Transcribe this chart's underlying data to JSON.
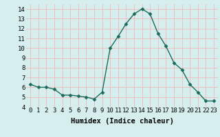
{
  "x": [
    0,
    1,
    2,
    3,
    4,
    5,
    6,
    7,
    8,
    9,
    10,
    11,
    12,
    13,
    14,
    15,
    16,
    17,
    18,
    19,
    20,
    21,
    22,
    23
  ],
  "y": [
    6.3,
    6.0,
    6.0,
    5.8,
    5.2,
    5.2,
    5.1,
    5.0,
    4.8,
    5.5,
    10.0,
    11.2,
    12.5,
    13.5,
    14.0,
    13.5,
    11.5,
    10.2,
    8.5,
    7.8,
    6.3,
    5.5,
    4.6,
    4.6
  ],
  "line_color": "#1a6b5a",
  "marker": "D",
  "markersize": 2.5,
  "linewidth": 1.0,
  "xlabel": "Humidex (Indice chaleur)",
  "ylabel": "",
  "xlim": [
    -0.5,
    23.5
  ],
  "ylim": [
    4,
    14.5
  ],
  "yticks": [
    4,
    5,
    6,
    7,
    8,
    9,
    10,
    11,
    12,
    13,
    14
  ],
  "xticks": [
    0,
    1,
    2,
    3,
    4,
    5,
    6,
    7,
    8,
    9,
    10,
    11,
    12,
    13,
    14,
    15,
    16,
    17,
    18,
    19,
    20,
    21,
    22,
    23
  ],
  "xtick_labels": [
    "0",
    "1",
    "2",
    "3",
    "4",
    "5",
    "6",
    "7",
    "8",
    "9",
    "10",
    "11",
    "12",
    "13",
    "14",
    "15",
    "16",
    "17",
    "18",
    "19",
    "20",
    "21",
    "22",
    "23"
  ],
  "bg_color": "#d6eeee",
  "grid_color": "#f0b8b8",
  "grid_linewidth": 0.6,
  "tick_fontsize": 6.5,
  "xlabel_fontsize": 7.5
}
